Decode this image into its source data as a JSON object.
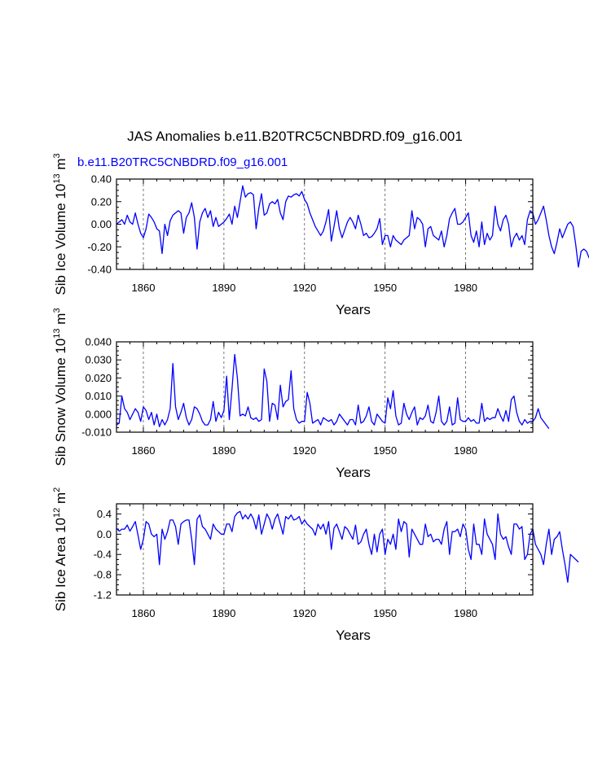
{
  "figure": {
    "title": "JAS Anomalies b.e11.B20TRC5CNBDRD.f09_g16.001",
    "case_label": "b.e11.B20TRC5CNBDRD.f09_g16.001",
    "case_color": "#0000ff",
    "line_color": "#0000ff"
  },
  "chart_data": [
    {
      "type": "line",
      "title": "",
      "xlabel": "Years",
      "ylabel": "Sib Ice Volume 10",
      "ylabel_exp": "13",
      "ylabel_unit": " m",
      "ylabel_unit_exp": "3",
      "xlim": [
        1850,
        2005
      ],
      "ylim": [
        -0.4,
        0.4
      ],
      "xticks": [
        1860,
        1890,
        1920,
        1950,
        1980
      ],
      "yticks": [
        -0.4,
        -0.2,
        0.0,
        0.2,
        0.4
      ],
      "ytick_labels": [
        "-0.40",
        "-0.20",
        "0.00",
        "0.20",
        "0.40"
      ],
      "grid": "vertical dashed at major x ticks",
      "series": [
        {
          "name": "b.e11.B20TRC5CNBDRD.f09_g16.001",
          "x_start": 1850,
          "x_step": 1,
          "values": [
            0.0,
            0.02,
            0.04,
            0.0,
            0.08,
            0.02,
            0.0,
            0.1,
            0.0,
            -0.08,
            -0.12,
            -0.04,
            0.09,
            0.06,
            0.02,
            -0.04,
            -0.06,
            -0.26,
            0.0,
            -0.1,
            0.03,
            0.08,
            0.1,
            0.12,
            0.1,
            -0.08,
            0.06,
            0.1,
            0.19,
            0.06,
            -0.22,
            0.02,
            0.1,
            0.14,
            0.06,
            0.12,
            -0.02,
            0.06,
            -0.02,
            0.0,
            0.02,
            0.05,
            0.09,
            0.0,
            0.16,
            0.06,
            0.2,
            0.34,
            0.24,
            0.27,
            0.28,
            0.26,
            -0.04,
            0.14,
            0.27,
            0.08,
            0.1,
            0.18,
            0.2,
            0.18,
            0.22,
            0.1,
            0.04,
            0.2,
            0.25,
            0.24,
            0.26,
            0.27,
            0.25,
            0.29,
            0.22,
            0.18,
            0.1,
            0.04,
            -0.02,
            -0.06,
            -0.1,
            -0.06,
            0.02,
            0.13,
            -0.15,
            -0.02,
            0.12,
            -0.04,
            -0.12,
            -0.05,
            0.02,
            0.06,
            0.02,
            -0.04,
            0.08,
            0.0,
            -0.1,
            -0.08,
            -0.12,
            -0.11,
            -0.08,
            -0.04,
            0.05,
            -0.18,
            -0.1,
            -0.1,
            -0.2,
            -0.1,
            -0.14,
            -0.16,
            -0.18,
            -0.14,
            -0.12,
            -0.1,
            0.12,
            -0.04,
            0.06,
            0.04,
            0.0,
            -0.2,
            -0.04,
            -0.02,
            -0.1,
            -0.12,
            -0.14,
            -0.06,
            -0.2,
            -0.1,
            0.05,
            0.1,
            0.14,
            0.0,
            0.0,
            0.02,
            0.06,
            0.1,
            -0.1,
            -0.16,
            -0.06,
            -0.2,
            0.02,
            -0.18,
            -0.08,
            -0.14,
            -0.1,
            0.16,
            0.0,
            -0.06,
            0.04,
            0.08,
            0.0,
            -0.2,
            -0.12,
            -0.08,
            -0.14,
            -0.1,
            -0.18,
            0.04,
            0.12,
            0.1,
            0.0,
            0.04,
            0.1,
            0.16,
            0.04,
            -0.1,
            -0.2,
            -0.26,
            -0.16,
            -0.04,
            -0.12,
            -0.06,
            0.0,
            0.02,
            -0.02,
            -0.18,
            -0.38,
            -0.24,
            -0.22,
            -0.24,
            -0.3
          ]
        }
      ]
    },
    {
      "type": "line",
      "title": "",
      "xlabel": "Years",
      "ylabel": "Sib Snow Volume 10",
      "ylabel_exp": "13",
      "ylabel_unit": " m",
      "ylabel_unit_exp": "3",
      "xlim": [
        1850,
        2005
      ],
      "ylim": [
        -0.01,
        0.04
      ],
      "xticks": [
        1860,
        1890,
        1920,
        1950,
        1980
      ],
      "yticks": [
        -0.01,
        0.0,
        0.01,
        0.02,
        0.03,
        0.04
      ],
      "ytick_labels": [
        "-0.010",
        "0.000",
        "0.010",
        "0.020",
        "0.030",
        "0.040"
      ],
      "grid": "vertical dashed at major x ticks",
      "series": [
        {
          "name": "b.e11.B20TRC5CNBDRD.f09_g16.001",
          "x_start": 1850,
          "x_step": 1,
          "values": [
            -0.006,
            -0.005,
            0.01,
            0.003,
            0.001,
            -0.003,
            0.0,
            0.003,
            0.001,
            -0.004,
            0.004,
            0.002,
            -0.003,
            0.001,
            -0.006,
            0.0,
            -0.007,
            -0.003,
            -0.006,
            -0.003,
            0.003,
            0.028,
            0.004,
            -0.003,
            0.001,
            0.006,
            -0.002,
            -0.006,
            -0.003,
            0.004,
            0.003,
            0.0,
            -0.004,
            -0.006,
            -0.006,
            -0.003,
            0.007,
            -0.004,
            0.001,
            -0.002,
            0.002,
            0.021,
            -0.003,
            0.014,
            0.033,
            0.02,
            -0.001,
            0.0,
            -0.001,
            0.004,
            -0.002,
            -0.003,
            -0.002,
            -0.004,
            -0.003,
            0.025,
            0.018,
            -0.004,
            0.006,
            0.005,
            -0.003,
            0.016,
            0.004,
            0.007,
            0.008,
            0.024,
            0.003,
            -0.003,
            -0.005,
            -0.004,
            -0.004,
            0.012,
            0.006,
            -0.005,
            -0.004,
            -0.003,
            -0.006,
            -0.002,
            -0.003,
            -0.004,
            -0.003,
            -0.006,
            -0.004,
            0.0,
            -0.002,
            -0.004,
            -0.006,
            -0.003,
            -0.003,
            -0.006,
            0.005,
            -0.005,
            -0.004,
            -0.001,
            0.004,
            -0.004,
            -0.006,
            0.0,
            -0.002,
            -0.004,
            -0.005,
            0.009,
            0.003,
            0.013,
            -0.001,
            -0.006,
            -0.005,
            0.006,
            0.0,
            -0.003,
            0.001,
            0.004,
            -0.006,
            -0.002,
            -0.003,
            -0.001,
            0.005,
            -0.004,
            -0.005,
            0.001,
            0.01,
            -0.004,
            -0.006,
            -0.004,
            0.004,
            -0.006,
            -0.005,
            0.009,
            -0.003,
            -0.004,
            -0.004,
            -0.002,
            -0.004,
            -0.003,
            -0.005,
            -0.005,
            0.006,
            -0.004,
            -0.002,
            -0.003,
            -0.002,
            -0.002,
            0.003,
            -0.001,
            -0.004,
            0.002,
            -0.004,
            0.008,
            0.01,
            0.001,
            -0.004,
            -0.006,
            -0.003,
            -0.005,
            -0.004,
            -0.004,
            -0.002,
            0.003,
            -0.002,
            -0.004,
            -0.006,
            -0.008
          ]
        }
      ]
    },
    {
      "type": "line",
      "title": "",
      "xlabel": "Years",
      "ylabel": "Sib Ice Area 10",
      "ylabel_exp": "12",
      "ylabel_unit": " m",
      "ylabel_unit_exp": "2",
      "xlim": [
        1850,
        2005
      ],
      "ylim": [
        -1.2,
        0.6
      ],
      "xticks": [
        1860,
        1890,
        1920,
        1950,
        1980
      ],
      "yticks": [
        -1.2,
        -0.8,
        -0.4,
        0.0,
        0.4
      ],
      "ytick_labels": [
        "-1.2",
        "-0.8",
        "-0.4",
        "0.0",
        "0.4"
      ],
      "grid": "vertical dashed at major x ticks",
      "series": [
        {
          "name": "b.e11.B20TRC5CNBDRD.f09_g16.001",
          "x_start": 1850,
          "x_step": 1,
          "values": [
            0.12,
            0.06,
            0.1,
            0.1,
            0.18,
            0.06,
            0.15,
            0.25,
            -0.02,
            -0.3,
            -0.1,
            0.25,
            0.2,
            0.0,
            -0.05,
            0.0,
            -0.6,
            0.1,
            -0.1,
            0.05,
            0.28,
            0.28,
            0.15,
            -0.2,
            0.2,
            0.25,
            0.28,
            0.28,
            -0.1,
            -0.6,
            0.3,
            0.38,
            0.15,
            0.1,
            0.0,
            -0.1,
            0.2,
            0.1,
            0.05,
            0.0,
            0.0,
            0.2,
            0.2,
            0.05,
            0.35,
            0.42,
            0.45,
            0.3,
            0.38,
            0.3,
            0.4,
            0.3,
            0.1,
            0.38,
            0.0,
            0.2,
            0.4,
            0.3,
            0.1,
            0.3,
            0.4,
            0.2,
            0.0,
            0.35,
            0.3,
            0.38,
            0.28,
            0.3,
            0.35,
            0.2,
            0.28,
            0.2,
            0.15,
            0.1,
            -0.02,
            0.2,
            0.1,
            0.2,
            0.0,
            0.25,
            -0.3,
            0.12,
            0.2,
            0.05,
            -0.1,
            0.15,
            0.1,
            0.0,
            -0.1,
            0.18,
            -0.2,
            -0.15,
            0.0,
            0.1,
            -0.2,
            -0.4,
            0.0,
            -0.35,
            0.0,
            0.1,
            -0.4,
            -0.1,
            -0.2,
            0.0,
            -0.3,
            0.3,
            0.05,
            0.25,
            0.2,
            -0.45,
            0.1,
            0.0,
            -0.1,
            -0.2,
            -0.2,
            0.2,
            -0.05,
            0.0,
            -0.15,
            -0.1,
            -0.1,
            -0.2,
            0.1,
            0.25,
            -0.4,
            0.05,
            0.05,
            0.1,
            -0.05,
            0.2,
            0.1,
            -0.3,
            -0.5,
            0.2,
            -0.2,
            -0.2,
            -0.4,
            0.3,
            0.0,
            -0.1,
            -0.2,
            -0.5,
            0.4,
            0.0,
            -0.1,
            -0.05,
            -0.25,
            -0.4,
            0.2,
            0.2,
            0.1,
            0.15,
            -0.5,
            -0.4,
            0.0,
            0.1,
            -0.2,
            -0.3,
            -0.4,
            -0.6,
            -0.2,
            0.1,
            -0.4,
            -0.1,
            -0.05,
            0.05,
            -0.3,
            -0.6,
            -0.95,
            -0.4,
            -0.45,
            -0.5,
            -0.55
          ]
        }
      ]
    }
  ]
}
